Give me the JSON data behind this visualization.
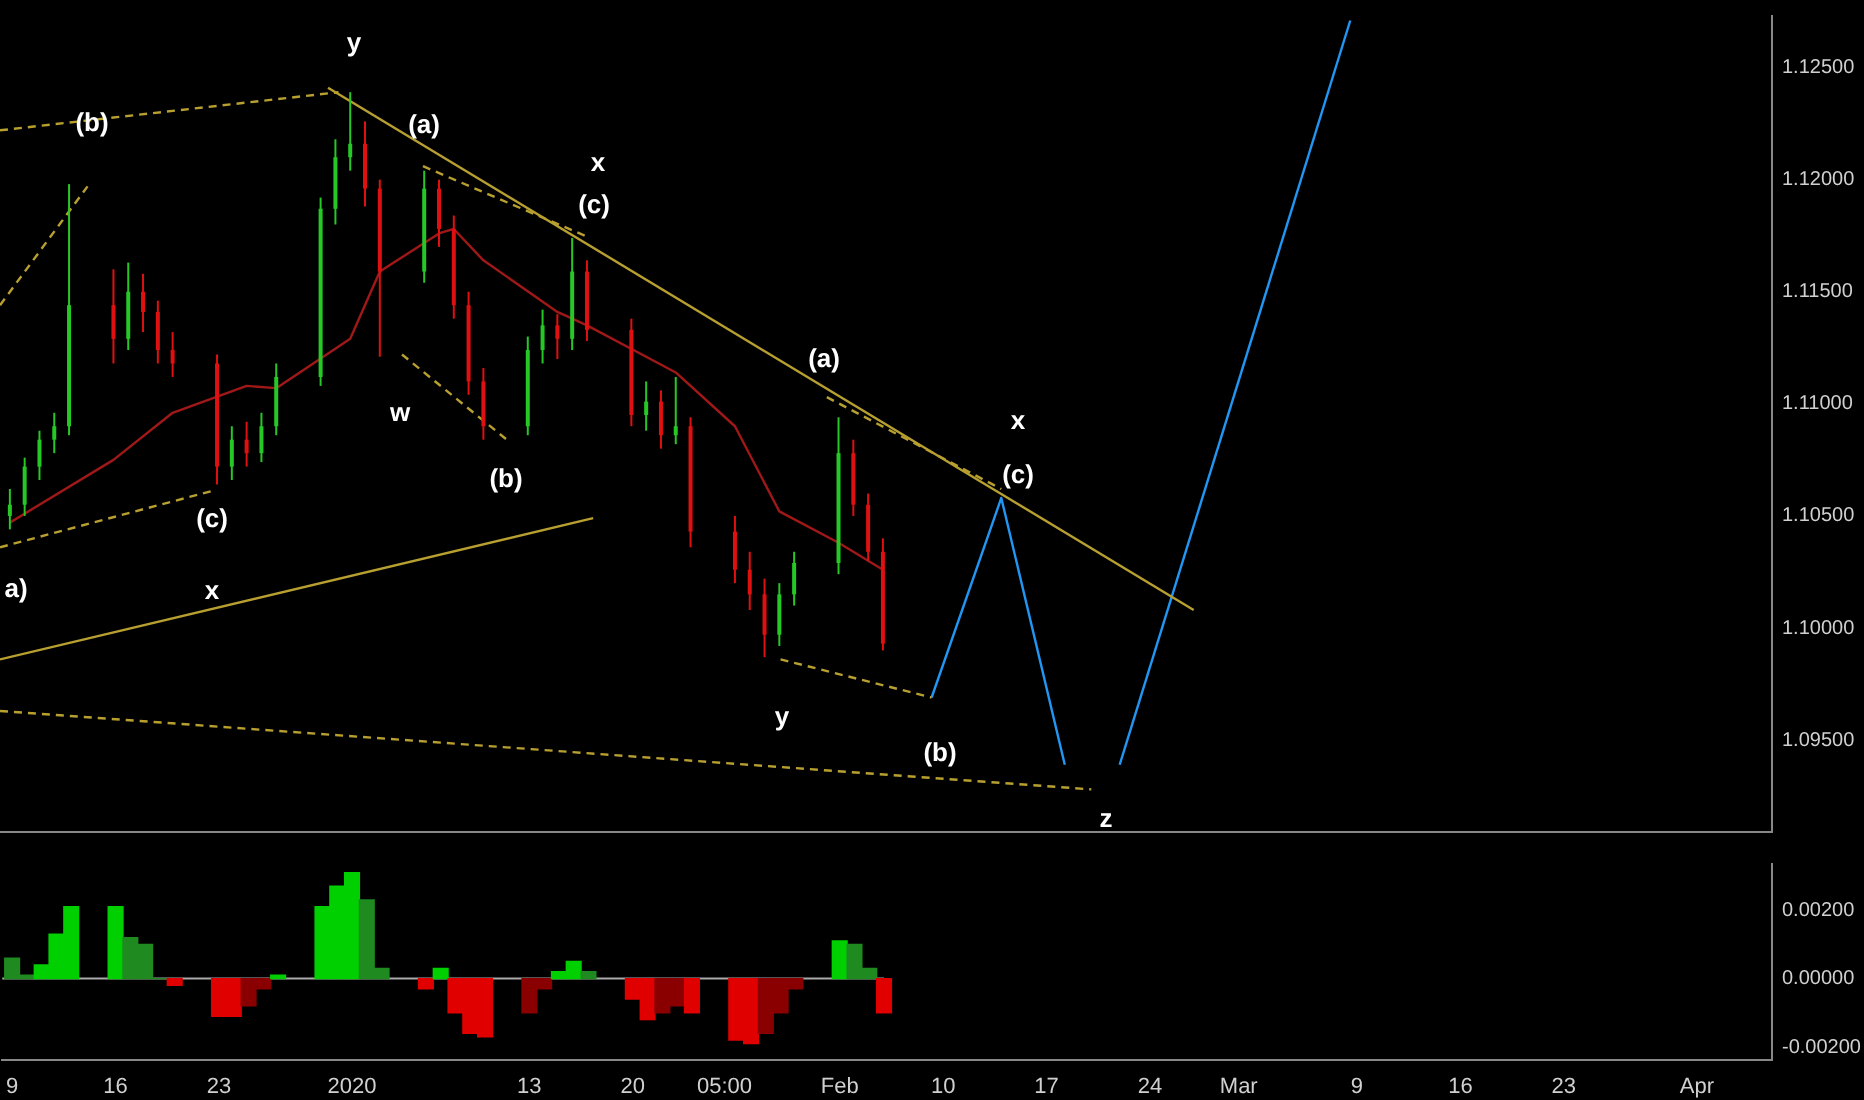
{
  "chart_data": [
    {
      "type": "candlestick",
      "tick_labels": "y",
      "grid": false,
      "legend": false,
      "x": [
        "2019-12-09",
        "2019-12-10",
        "2019-12-11",
        "2019-12-12",
        "2019-12-13",
        "2019-12-16",
        "2019-12-17",
        "2019-12-18",
        "2019-12-19",
        "2019-12-20",
        "2019-12-23",
        "2019-12-24",
        "2019-12-25",
        "2019-12-26",
        "2019-12-27",
        "2019-12-30",
        "2019-12-31",
        "2020-01-01",
        "2020-01-02",
        "2020-01-03",
        "2020-01-06",
        "2020-01-07",
        "2020-01-08",
        "2020-01-09",
        "2020-01-10",
        "2020-01-13",
        "2020-01-14",
        "2020-01-15",
        "2020-01-16",
        "2020-01-17",
        "2020-01-20",
        "2020-01-21",
        "2020-01-22",
        "2020-01-23",
        "2020-01-24",
        "2020-01-27",
        "2020-01-28",
        "2020-01-29",
        "2020-01-30",
        "2020-01-31",
        "2020-02-03",
        "2020-02-04",
        "2020-02-05",
        "2020-02-06"
      ],
      "ohlc": [
        [
          1.105,
          1.1062,
          1.1044,
          1.1055
        ],
        [
          1.1055,
          1.1076,
          1.105,
          1.1072
        ],
        [
          1.1072,
          1.1088,
          1.1066,
          1.1084
        ],
        [
          1.1084,
          1.1096,
          1.1078,
          1.109
        ],
        [
          1.109,
          1.1198,
          1.1086,
          1.1144
        ],
        [
          1.1144,
          1.116,
          1.1118,
          1.1129
        ],
        [
          1.1129,
          1.1163,
          1.1124,
          1.115
        ],
        [
          1.115,
          1.1158,
          1.1132,
          1.1141
        ],
        [
          1.1141,
          1.1146,
          1.1118,
          1.1124
        ],
        [
          1.1124,
          1.1132,
          1.1112,
          1.1118
        ],
        [
          1.1118,
          1.1122,
          1.1064,
          1.1072
        ],
        [
          1.1072,
          1.109,
          1.1066,
          1.1084
        ],
        [
          1.1084,
          1.1092,
          1.1072,
          1.1078
        ],
        [
          1.1078,
          1.1096,
          1.1074,
          1.109
        ],
        [
          1.109,
          1.1118,
          1.1086,
          1.1112
        ],
        [
          1.1112,
          1.1192,
          1.1108,
          1.1187
        ],
        [
          1.1187,
          1.1218,
          1.118,
          1.121
        ],
        [
          1.121,
          1.1239,
          1.1204,
          1.1216
        ],
        [
          1.1216,
          1.1226,
          1.1188,
          1.1196
        ],
        [
          1.1196,
          1.12,
          1.1121,
          1.1159
        ],
        [
          1.1159,
          1.1204,
          1.1154,
          1.1196
        ],
        [
          1.1196,
          1.12,
          1.117,
          1.1178
        ],
        [
          1.1178,
          1.1184,
          1.1138,
          1.1144
        ],
        [
          1.1144,
          1.115,
          1.1104,
          1.111
        ],
        [
          1.111,
          1.1116,
          1.1084,
          1.109
        ],
        [
          1.109,
          1.113,
          1.1086,
          1.1124
        ],
        [
          1.1124,
          1.1142,
          1.1118,
          1.1135
        ],
        [
          1.1135,
          1.114,
          1.112,
          1.1129
        ],
        [
          1.1129,
          1.1174,
          1.1124,
          1.1159
        ],
        [
          1.1159,
          1.1164,
          1.1128,
          1.1133
        ],
        [
          1.1133,
          1.1138,
          1.109,
          1.1095
        ],
        [
          1.1095,
          1.111,
          1.1088,
          1.1101
        ],
        [
          1.1101,
          1.1106,
          1.108,
          1.1086
        ],
        [
          1.1086,
          1.1112,
          1.1082,
          1.109
        ],
        [
          1.109,
          1.1094,
          1.1036,
          1.1043
        ],
        [
          1.1043,
          1.105,
          1.102,
          1.1026
        ],
        [
          1.1026,
          1.1034,
          1.1008,
          1.1015
        ],
        [
          1.1015,
          1.1022,
          1.0987,
          1.0997
        ],
        [
          1.0997,
          1.102,
          1.0992,
          1.1015
        ],
        [
          1.1015,
          1.1034,
          1.101,
          1.1029
        ],
        [
          1.1029,
          1.1094,
          1.1024,
          1.1078
        ],
        [
          1.1078,
          1.1084,
          1.105,
          1.1055
        ],
        [
          1.1055,
          1.106,
          1.103,
          1.1034
        ],
        [
          1.1034,
          1.104,
          1.099,
          1.0993
        ]
      ],
      "colors": [
        "#26c826",
        "#26c826",
        "#26c826",
        "#26c826",
        "#26c826",
        "#e01010",
        "#26c826",
        "#e01010",
        "#e01010",
        "#e01010",
        "#e01010",
        "#26c826",
        "#e01010",
        "#26c826",
        "#26c826",
        "#26c826",
        "#26c826",
        "#26c826",
        "#e01010",
        "#e01010",
        "#26c826",
        "#e01010",
        "#e01010",
        "#e01010",
        "#e01010",
        "#26c826",
        "#26c826",
        "#e01010",
        "#26c826",
        "#e01010",
        "#e01010",
        "#26c826",
        "#e01010",
        "#26c826",
        "#e01010",
        "#e01010",
        "#e01010",
        "#e01010",
        "#26c826",
        "#26c826",
        "#26c826",
        "#e01010",
        "#e01010",
        "#e01010"
      ],
      "series": [
        {
          "type": "line",
          "color": "#a01818",
          "line_style": "solid",
          "x": [
            "2019-12-09",
            "2019-12-16",
            "2019-12-20",
            "2019-12-25",
            "2019-12-27",
            "2020-01-01",
            "2020-01-03",
            "2020-01-07",
            "2020-01-08",
            "2020-01-10",
            "2020-01-15",
            "2020-01-17",
            "2020-01-21",
            "2020-01-23",
            "2020-01-27",
            "2020-01-30",
            "2020-02-03",
            "2020-02-06"
          ],
          "values": [
            1.1047,
            1.1075,
            1.1096,
            1.1108,
            1.1107,
            1.1129,
            1.1159,
            1.1176,
            1.1178,
            1.1164,
            1.1141,
            1.1135,
            1.1121,
            1.1114,
            1.109,
            1.1052,
            1.1038,
            1.1026
          ]
        },
        {
          "type": "line",
          "color": "#b8a030",
          "line_style": "solid",
          "x": [
            "2019-12-30T12:00",
            "2020-02-27"
          ],
          "values": [
            1.1241,
            1.1008
          ]
        },
        {
          "type": "line",
          "color": "#b8a030",
          "line_style": "solid",
          "x": [
            "2019-12-08T08:00",
            "2020-01-17T10:00"
          ],
          "values": [
            1.0986,
            1.1049
          ]
        },
        {
          "type": "line",
          "color": "#b8a030",
          "line_style": "dashed",
          "x": [
            "2019-12-08T08:00",
            "2019-12-31T05:00"
          ],
          "values": [
            1.1222,
            1.1239
          ]
        },
        {
          "type": "line",
          "color": "#b8a030",
          "line_style": "dashed",
          "x": [
            "2019-12-08T08:00",
            "2019-12-14T06:00"
          ],
          "values": [
            1.1144,
            1.1197
          ]
        },
        {
          "type": "line",
          "color": "#b8a030",
          "line_style": "dashed",
          "x": [
            "2019-12-08T08:00",
            "2019-12-22T14:00"
          ],
          "values": [
            1.1036,
            1.1061
          ]
        },
        {
          "type": "line",
          "color": "#b8a030",
          "line_style": "dashed",
          "x": [
            "2020-01-05T22:00",
            "2020-01-17T05:00"
          ],
          "values": [
            1.1206,
            1.1174
          ]
        },
        {
          "type": "line",
          "color": "#b8a030",
          "line_style": "dashed",
          "x": [
            "2020-01-04T12:00",
            "2020-01-11T14:00"
          ],
          "values": [
            1.1122,
            1.1084
          ]
        },
        {
          "type": "line",
          "color": "#b8a030",
          "line_style": "dashed",
          "x": [
            "2020-02-02T05:00",
            "2020-02-14"
          ],
          "values": [
            1.1103,
            1.1062
          ]
        },
        {
          "type": "line",
          "color": "#b8a030",
          "line_style": "dashed",
          "x": [
            "2020-01-30T02:00",
            "2020-02-09T07:00"
          ],
          "values": [
            1.0986,
            1.0969
          ]
        },
        {
          "type": "line",
          "color": "#b8a030",
          "line_style": "dashed",
          "x": [
            "2019-12-08T08:00",
            "2020-02-20T02:00"
          ],
          "values": [
            1.0963,
            1.0928
          ]
        },
        {
          "type": "line",
          "color": "#2196f3",
          "line_style": "solid",
          "x": [
            "2020-02-09T07:00",
            "2020-02-14",
            "2020-02-18T07:00"
          ],
          "values": [
            1.0969,
            1.1058,
            1.0939
          ]
        },
        {
          "type": "line",
          "color": "#2196f3",
          "line_style": "solid",
          "x": [
            "2020-02-22",
            "2020-03-08T14:00"
          ],
          "values": [
            1.0939,
            1.1271
          ]
        }
      ],
      "annotations": [
        "(b)",
        "y",
        "(a)",
        "x",
        "(c)",
        "w",
        "(b)",
        "(c)",
        "a)",
        "x",
        "(a)",
        "x",
        "(c)",
        "y",
        "(b)",
        "z"
      ],
      "xlim": [
        "2019-12-08T08:00",
        "2020-04-06T02:00"
      ],
      "ylim": [
        1.0909,
        1.1273
      ],
      "yticks": [
        {
          "value": 1.095,
          "label": "1.09500"
        },
        {
          "value": 1.1,
          "label": "1.10000"
        },
        {
          "value": 1.105,
          "label": "1.10500"
        },
        {
          "value": 1.11,
          "label": "1.11000"
        },
        {
          "value": 1.115,
          "label": "1.11500"
        },
        {
          "value": 1.12,
          "label": "1.12000"
        },
        {
          "value": 1.125,
          "label": "1.12500"
        }
      ]
    },
    {
      "type": "bar",
      "grid": false,
      "legend": false,
      "x": [
        "2019-12-09",
        "2019-12-10",
        "2019-12-11",
        "2019-12-12",
        "2019-12-13",
        "2019-12-16",
        "2019-12-17",
        "2019-12-18",
        "2019-12-19",
        "2019-12-20",
        "2019-12-23",
        "2019-12-24",
        "2019-12-25",
        "2019-12-26",
        "2019-12-27",
        "2019-12-30",
        "2019-12-31",
        "2020-01-01",
        "2020-01-02",
        "2020-01-03",
        "2020-01-06",
        "2020-01-07",
        "2020-01-08",
        "2020-01-09",
        "2020-01-10",
        "2020-01-13",
        "2020-01-14",
        "2020-01-15",
        "2020-01-16",
        "2020-01-17",
        "2020-01-20",
        "2020-01-21",
        "2020-01-22",
        "2020-01-23",
        "2020-01-24",
        "2020-01-27",
        "2020-01-28",
        "2020-01-29",
        "2020-01-30",
        "2020-01-31",
        "2020-02-03",
        "2020-02-04",
        "2020-02-05",
        "2020-02-06"
      ],
      "values": [
        0.0006,
        0.0001,
        0.0004,
        0.0013,
        0.0021,
        0.0021,
        0.0012,
        0.001,
        0,
        -0.0002,
        -0.0011,
        -0.0011,
        -0.0008,
        -0.0003,
        0.0001,
        0.0021,
        0.0027,
        0.0031,
        0.0023,
        0.0003,
        -0.0003,
        0.0003,
        -0.001,
        -0.0016,
        -0.0017,
        -0.001,
        -0.0003,
        0.0002,
        0.0005,
        0.0002,
        -0.0006,
        -0.0012,
        -0.001,
        -0.0008,
        -0.001,
        -0.0018,
        -0.0019,
        -0.0016,
        -0.001,
        -0.0003,
        0.0011,
        0.001,
        0.0003,
        -0.001
      ],
      "colors": [
        "#1f8a1f",
        "#1f8a1f",
        "#00d000",
        "#00d000",
        "#00d000",
        "#00d000",
        "#1f8a1f",
        "#1f8a1f",
        "#1f8a1f",
        "#e00000",
        "#e00000",
        "#e00000",
        "#8a0000",
        "#8a0000",
        "#00d000",
        "#00d000",
        "#00d000",
        "#00d000",
        "#1f8a1f",
        "#1f8a1f",
        "#e00000",
        "#00d000",
        "#e00000",
        "#e00000",
        "#e00000",
        "#8a0000",
        "#8a0000",
        "#00d000",
        "#00d000",
        "#1f8a1f",
        "#e00000",
        "#e00000",
        "#8a0000",
        "#8a0000",
        "#e00000",
        "#e00000",
        "#e00000",
        "#8a0000",
        "#8a0000",
        "#8a0000",
        "#00d000",
        "#1f8a1f",
        "#1f8a1f",
        "#e00000"
      ],
      "ref_lines": [
        {
          "axis": "y",
          "value": 0,
          "color": "#aaaaaa",
          "line_style": "solid"
        }
      ],
      "xlim": [
        "2019-12-08T08:00",
        "2020-04-06T02:00"
      ],
      "ylim": [
        -0.00238,
        0.00335
      ],
      "xticks": [
        {
          "value": "2019-12-09",
          "label": "9"
        },
        {
          "value": "2019-12-16",
          "label": "16"
        },
        {
          "value": "2019-12-23",
          "label": "23"
        },
        {
          "value": "2020-01-01",
          "label": "2020"
        },
        {
          "value": "2020-01-13",
          "label": "13"
        },
        {
          "value": "2020-01-20",
          "label": "20"
        },
        {
          "value": "2020-01-26T05:00",
          "label": "05:00"
        },
        {
          "value": "2020-02-03",
          "label": "Feb"
        },
        {
          "value": "2020-02-10",
          "label": "10"
        },
        {
          "value": "2020-02-17",
          "label": "17"
        },
        {
          "value": "2020-02-24",
          "label": "24"
        },
        {
          "value": "2020-03-01",
          "label": "Mar"
        },
        {
          "value": "2020-03-09",
          "label": "9"
        },
        {
          "value": "2020-03-16",
          "label": "16"
        },
        {
          "value": "2020-03-23",
          "label": "23"
        },
        {
          "value": "2020-04-01",
          "label": "Apr"
        }
      ],
      "yticks": [
        {
          "value": -0.002,
          "label": "-0.00200"
        },
        {
          "value": 0,
          "label": "0.00000"
        },
        {
          "value": 0.002,
          "label": "0.00200"
        }
      ]
    }
  ]
}
